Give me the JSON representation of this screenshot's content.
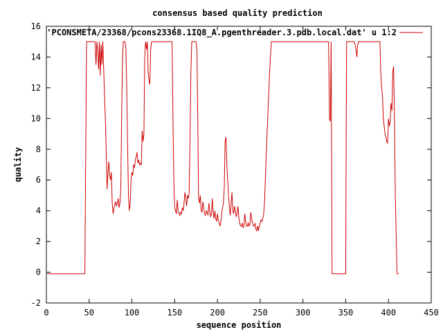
{
  "chart_data": {
    "type": "line",
    "title": "consensus based quality prediction",
    "xlabel": "sequence position",
    "ylabel": "quality",
    "xlim": [
      0,
      450
    ],
    "ylim": [
      -2,
      16
    ],
    "xticks": [
      0,
      50,
      100,
      150,
      200,
      250,
      300,
      350,
      400,
      450
    ],
    "yticks": [
      -2,
      0,
      2,
      4,
      6,
      8,
      10,
      12,
      14,
      16
    ],
    "legend_position": "top-right",
    "series": [
      {
        "name": "'PCONSMETA/23368/pcons23368.1IQ8_A.pgenthreader.3.pdb.local.dat' u 1:2",
        "color": "#cc0000",
        "points": [
          [
            1,
            -0.1
          ],
          [
            45,
            -0.1
          ],
          [
            46,
            7.6
          ],
          [
            47,
            15
          ],
          [
            57,
            15
          ],
          [
            58,
            13.5
          ],
          [
            59,
            15
          ],
          [
            60,
            14.5
          ],
          [
            61,
            13.2
          ],
          [
            62,
            15
          ],
          [
            63,
            12.8
          ],
          [
            64,
            14.8
          ],
          [
            65,
            13.5
          ],
          [
            66,
            15
          ],
          [
            67,
            13.2
          ],
          [
            68,
            11.5
          ],
          [
            69,
            9.8
          ],
          [
            70,
            7.8
          ],
          [
            71,
            5.4
          ],
          [
            72,
            6.5
          ],
          [
            73,
            7.2
          ],
          [
            74,
            6.3
          ],
          [
            75,
            6.0
          ],
          [
            76,
            6.5
          ],
          [
            77,
            4.5
          ],
          [
            78,
            3.8
          ],
          [
            79,
            4.2
          ],
          [
            80,
            4.4
          ],
          [
            81,
            4.6
          ],
          [
            82,
            4.3
          ],
          [
            83,
            4.5
          ],
          [
            84,
            4.8
          ],
          [
            85,
            4.2
          ],
          [
            86,
            4.5
          ],
          [
            87,
            5.5
          ],
          [
            88,
            10.0
          ],
          [
            89,
            14.0
          ],
          [
            90,
            15
          ],
          [
            92,
            15
          ],
          [
            93,
            14.5
          ],
          [
            94,
            12.0
          ],
          [
            95,
            8.0
          ],
          [
            96,
            5.0
          ],
          [
            97,
            4.0
          ],
          [
            98,
            4.5
          ],
          [
            99,
            6.0
          ],
          [
            100,
            6.5
          ],
          [
            101,
            6.3
          ],
          [
            102,
            7.0
          ],
          [
            103,
            6.8
          ],
          [
            104,
            7.3
          ],
          [
            105,
            7.5
          ],
          [
            106,
            7.8
          ],
          [
            107,
            7.1
          ],
          [
            108,
            7.3
          ],
          [
            109,
            7.0
          ],
          [
            110,
            7.1
          ],
          [
            111,
            7.0
          ],
          [
            112,
            9.2
          ],
          [
            113,
            8.5
          ],
          [
            114,
            9.0
          ],
          [
            115,
            14.0
          ],
          [
            116,
            15
          ],
          [
            117,
            14.5
          ],
          [
            118,
            15
          ],
          [
            119,
            13.0
          ],
          [
            120,
            12.5
          ],
          [
            121,
            12.2
          ],
          [
            122,
            14.5
          ],
          [
            123,
            15
          ],
          [
            126,
            15
          ],
          [
            127,
            15
          ],
          [
            147,
            15
          ],
          [
            148,
            10.0
          ],
          [
            149,
            6.0
          ],
          [
            150,
            4.2
          ],
          [
            151,
            4.0
          ],
          [
            152,
            3.8
          ],
          [
            153,
            4.7
          ],
          [
            154,
            4.0
          ],
          [
            155,
            3.8
          ],
          [
            156,
            3.7
          ],
          [
            157,
            3.9
          ],
          [
            158,
            3.8
          ],
          [
            159,
            4.2
          ],
          [
            160,
            4.0
          ],
          [
            161,
            4.5
          ],
          [
            162,
            5.2
          ],
          [
            163,
            4.8
          ],
          [
            164,
            4.3
          ],
          [
            165,
            5.0
          ],
          [
            166,
            4.8
          ],
          [
            167,
            5.2
          ],
          [
            168,
            9.0
          ],
          [
            169,
            13.0
          ],
          [
            170,
            15
          ],
          [
            175,
            15
          ],
          [
            176,
            14.5
          ],
          [
            177,
            10.0
          ],
          [
            178,
            4.8
          ],
          [
            179,
            4.5
          ],
          [
            180,
            5.0
          ],
          [
            181,
            4.0
          ],
          [
            182,
            3.9
          ],
          [
            183,
            4.6
          ],
          [
            184,
            4.2
          ],
          [
            185,
            3.8
          ],
          [
            186,
            3.7
          ],
          [
            187,
            4.0
          ],
          [
            188,
            3.9
          ],
          [
            189,
            3.7
          ],
          [
            190,
            4.5
          ],
          [
            191,
            4.0
          ],
          [
            192,
            3.6
          ],
          [
            193,
            3.8
          ],
          [
            194,
            4.8
          ],
          [
            195,
            3.9
          ],
          [
            196,
            3.5
          ],
          [
            197,
            4.0
          ],
          [
            198,
            3.5
          ],
          [
            199,
            3.3
          ],
          [
            200,
            3.8
          ],
          [
            201,
            3.4
          ],
          [
            202,
            3.2
          ],
          [
            203,
            3.0
          ],
          [
            204,
            3.3
          ],
          [
            205,
            3.8
          ],
          [
            206,
            4.2
          ],
          [
            207,
            4.5
          ],
          [
            208,
            5.5
          ],
          [
            209,
            8.5
          ],
          [
            210,
            8.8
          ],
          [
            211,
            7.0
          ],
          [
            212,
            6.0
          ],
          [
            213,
            5.0
          ],
          [
            214,
            4.2
          ],
          [
            215,
            3.7
          ],
          [
            216,
            4.5
          ],
          [
            217,
            5.2
          ],
          [
            218,
            4.0
          ],
          [
            219,
            3.8
          ],
          [
            220,
            4.3
          ],
          [
            221,
            4.0
          ],
          [
            222,
            3.6
          ],
          [
            223,
            3.8
          ],
          [
            224,
            4.3
          ],
          [
            225,
            3.6
          ],
          [
            226,
            3.2
          ],
          [
            227,
            3.0
          ],
          [
            228,
            3.0
          ],
          [
            229,
            3.2
          ],
          [
            230,
            2.9
          ],
          [
            231,
            3.0
          ],
          [
            232,
            3.8
          ],
          [
            233,
            3.3
          ],
          [
            234,
            3.0
          ],
          [
            235,
            3.0
          ],
          [
            236,
            3.2
          ],
          [
            237,
            3.0
          ],
          [
            238,
            3.1
          ],
          [
            239,
            3.9
          ],
          [
            240,
            3.5
          ],
          [
            241,
            3.2
          ],
          [
            242,
            3.0
          ],
          [
            243,
            3.0
          ],
          [
            244,
            3.2
          ],
          [
            245,
            2.8
          ],
          [
            246,
            2.7
          ],
          [
            247,
            3.0
          ],
          [
            248,
            2.7
          ],
          [
            249,
            3.0
          ],
          [
            250,
            3.2
          ],
          [
            251,
            3.4
          ],
          [
            252,
            3.3
          ],
          [
            253,
            3.5
          ],
          [
            254,
            3.7
          ],
          [
            255,
            4.5
          ],
          [
            256,
            6.0
          ],
          [
            258,
            9.0
          ],
          [
            261,
            13.0
          ],
          [
            263,
            15
          ],
          [
            270,
            15
          ],
          [
            300,
            15
          ],
          [
            330,
            15
          ],
          [
            331,
            10.0
          ],
          [
            332,
            9.8
          ],
          [
            333,
            15
          ],
          [
            334,
            -0.1
          ],
          [
            350,
            -0.1
          ],
          [
            351,
            15
          ],
          [
            360,
            15
          ],
          [
            361,
            14.8
          ],
          [
            362,
            14.5
          ],
          [
            363,
            14.0
          ],
          [
            364,
            14.8
          ],
          [
            365,
            15
          ],
          [
            390,
            15
          ],
          [
            391,
            13.0
          ],
          [
            392,
            12.0
          ],
          [
            393,
            11.5
          ],
          [
            394,
            10.0
          ],
          [
            395,
            9.5
          ],
          [
            396,
            9.0
          ],
          [
            397,
            8.8
          ],
          [
            398,
            8.5
          ],
          [
            399,
            8.4
          ],
          [
            400,
            10.0
          ],
          [
            401,
            9.5
          ],
          [
            402,
            9.8
          ],
          [
            403,
            11.0
          ],
          [
            404,
            10.5
          ],
          [
            405,
            13.0
          ],
          [
            406,
            13.4
          ],
          [
            407,
            10.0
          ],
          [
            408,
            5.0
          ],
          [
            410,
            -0.1
          ],
          [
            412,
            -0.1
          ]
        ]
      }
    ]
  }
}
